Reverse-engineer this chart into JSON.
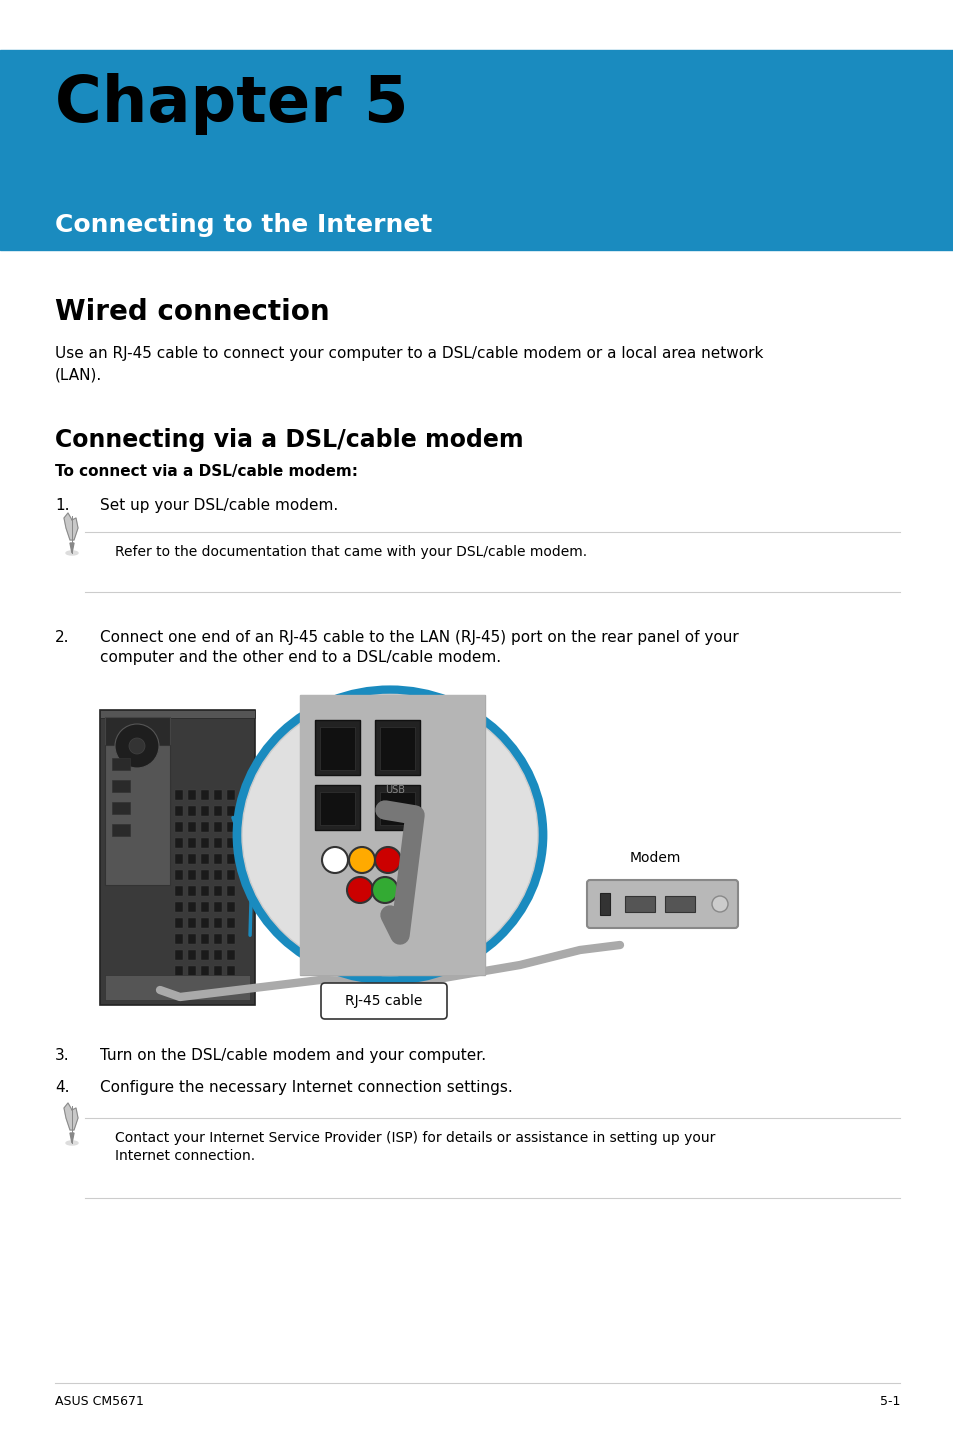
{
  "bg_color": "#ffffff",
  "header_bg": "#1a8bbf",
  "header_title": "Chapter 5",
  "header_subtitle": "Connecting to the Internet",
  "section1_title": "Wired connection",
  "section1_body": "Use an RJ-45 cable to connect your computer to a DSL/cable modem or a local area network\n(LAN).",
  "section2_title": "Connecting via a DSL/cable modem",
  "section2_bold": "To connect via a DSL/cable modem:",
  "step1": "Set up your DSL/cable modem.",
  "note1": "Refer to the documentation that came with your DSL/cable modem.",
  "step2_line1": "Connect one end of an RJ-45 cable to the LAN (RJ-45) port on the rear panel of your",
  "step2_line2": "computer and the other end to a DSL/cable modem.",
  "step3": "Turn on the DSL/cable modem and your computer.",
  "step4": "Configure the necessary Internet connection settings.",
  "note2_line1": "Contact your Internet Service Provider (ISP) for details or assistance in setting up your",
  "note2_line2": "Internet connection.",
  "footer_left": "ASUS CM5671",
  "footer_right": "5-1",
  "blue_color": "#1a8bbf",
  "gray_line_color": "#cccccc",
  "text_color": "#000000",
  "white": "#ffffff"
}
